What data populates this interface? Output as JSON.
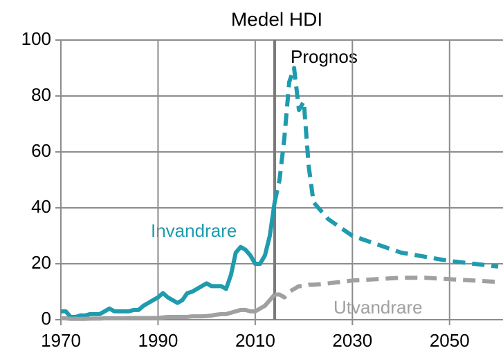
{
  "chart_data": {
    "type": "line",
    "title": "Medel HDI",
    "x": [
      1970,
      1971,
      1972,
      1973,
      1974,
      1975,
      1976,
      1977,
      1978,
      1979,
      1980,
      1981,
      1982,
      1983,
      1984,
      1985,
      1986,
      1987,
      1988,
      1989,
      1990,
      1991,
      1992,
      1993,
      1994,
      1995,
      1996,
      1997,
      1998,
      1999,
      2000,
      2001,
      2002,
      2003,
      2004,
      2005,
      2006,
      2007,
      2008,
      2009,
      2010,
      2011,
      2012,
      2013,
      2014,
      2015,
      2016,
      2017,
      2018,
      2019,
      2020,
      2021,
      2022,
      2025,
      2030,
      2035,
      2040,
      2045,
      2050,
      2055,
      2060
    ],
    "series": [
      {
        "name": "Invandrare",
        "color": "#1f9bad",
        "values": [
          3,
          3,
          1,
          1,
          1.5,
          1.5,
          2,
          2,
          2,
          3,
          4,
          3,
          3,
          3,
          3,
          3.5,
          3.5,
          5,
          6,
          7,
          8,
          9.5,
          8,
          7,
          6,
          7,
          9.5,
          10,
          11,
          12,
          13,
          12,
          12,
          12,
          11,
          16,
          24,
          26,
          25,
          23,
          20,
          20,
          23,
          30,
          42,
          50,
          65,
          85,
          90,
          75,
          78,
          55,
          42,
          36,
          30,
          27,
          24,
          22.5,
          21,
          20,
          19
        ]
      },
      {
        "name": "Utvandrare",
        "color": "#a0a0a0",
        "values": [
          0.5,
          0.5,
          0.3,
          0.3,
          0.3,
          0.3,
          0.4,
          0.4,
          0.4,
          0.5,
          0.5,
          0.5,
          0.5,
          0.5,
          0.6,
          0.6,
          0.6,
          0.6,
          0.6,
          0.6,
          0.6,
          0.8,
          1,
          1,
          1,
          1,
          1,
          1.2,
          1.2,
          1.2,
          1.3,
          1.5,
          1.8,
          2,
          2,
          2.5,
          3,
          3.5,
          3.5,
          3,
          3,
          4,
          5,
          7,
          9,
          9,
          8,
          10,
          11,
          12,
          12,
          12.5,
          12.5,
          13,
          14,
          14.5,
          15,
          15,
          14.5,
          14,
          13.5
        ]
      }
    ],
    "forecast_line": 2014,
    "annotation": "Prognos",
    "xlim": [
      1970,
      2061
    ],
    "xticks": [
      1970,
      1990,
      2010,
      2030,
      2050
    ],
    "ylim": [
      0,
      100
    ],
    "yticks": [
      0,
      20,
      40,
      60,
      80,
      100
    ],
    "grid": true
  }
}
